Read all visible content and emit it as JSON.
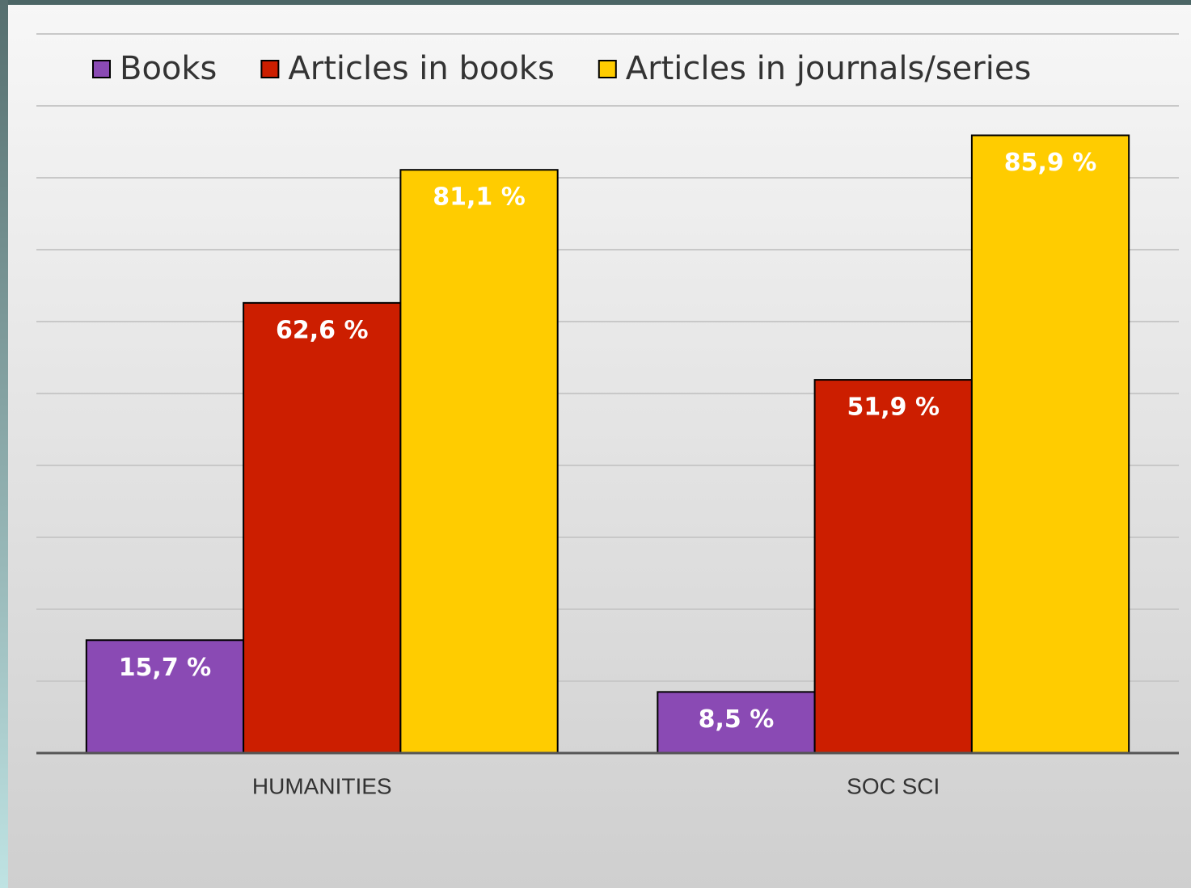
{
  "chart_data": {
    "type": "bar",
    "categories": [
      "HUMANITIES",
      "SOC SCI"
    ],
    "series": [
      {
        "name": "Books",
        "color": "#8a4ab4",
        "values": [
          15.7,
          8.5
        ],
        "value_labels": [
          "15,7 %",
          "8,5 %"
        ]
      },
      {
        "name": "Articles in books",
        "color": "#cc1e00",
        "values": [
          62.6,
          51.9
        ],
        "value_labels": [
          "62,6 %",
          "51,9 %"
        ]
      },
      {
        "name": "Articles in journals/series",
        "color": "#ffcc00",
        "values": [
          81.1,
          85.9
        ],
        "value_labels": [
          "81,1 %",
          "85,9 %"
        ]
      }
    ],
    "ylim": [
      0,
      100
    ],
    "yticks": [
      0,
      10,
      20,
      30,
      40,
      50,
      60,
      70,
      80,
      90,
      100
    ],
    "show_ytick_labels": false,
    "grid": true,
    "legend": "top"
  }
}
